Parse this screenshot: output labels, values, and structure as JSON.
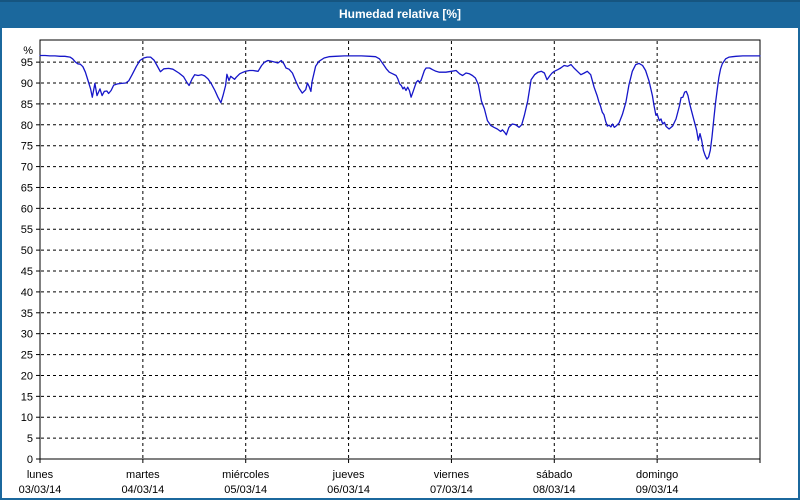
{
  "window": {
    "title": "Humedad relativa [%]"
  },
  "colors": {
    "titlebar_bg": "#1b689d",
    "window_border": "#1b689d",
    "title_text": "#ffffff",
    "line": "#1616c9",
    "grid": "#000000",
    "axis": "#000000",
    "label_text": "#000000",
    "plot_bg": "#ffffff"
  },
  "chart_data": {
    "type": "line",
    "title": "Humedad relativa [%]",
    "ylabel": "%",
    "ylim": [
      0,
      100.3
    ],
    "y_ticks": [
      0,
      5,
      10,
      15,
      20,
      25,
      30,
      35,
      40,
      45,
      50,
      55,
      60,
      65,
      70,
      75,
      80,
      85,
      90,
      95
    ],
    "grid": "dashed",
    "legend": "none",
    "x_total_hours": 168,
    "days": [
      {
        "name": "lunes",
        "date": "03/03/14"
      },
      {
        "name": "martes",
        "date": "04/03/14"
      },
      {
        "name": "miércoles",
        "date": "05/03/14"
      },
      {
        "name": "jueves",
        "date": "06/03/14"
      },
      {
        "name": "viernes",
        "date": "07/03/14"
      },
      {
        "name": "sábado",
        "date": "08/03/14"
      },
      {
        "name": "domingo",
        "date": "09/03/14"
      }
    ],
    "series": [
      {
        "name": "Humedad relativa",
        "unit": "%",
        "points": [
          [
            0,
            96.6
          ],
          [
            1.2,
            96.6
          ],
          [
            2.3,
            96.5
          ],
          [
            3.5,
            96.5
          ],
          [
            4.7,
            96.4
          ],
          [
            5.8,
            96.4
          ],
          [
            7,
            96.2
          ],
          [
            7.6,
            95.8
          ],
          [
            8.2,
            95.1
          ],
          [
            8.8,
            94.6
          ],
          [
            9.4,
            94.5
          ],
          [
            10,
            93.9
          ],
          [
            10.6,
            92.6
          ],
          [
            11.2,
            90.6
          ],
          [
            11.8,
            88.6
          ],
          [
            12.2,
            86.6
          ],
          [
            12.8,
            89.9
          ],
          [
            13.3,
            87.0
          ],
          [
            14,
            88.6
          ],
          [
            14.5,
            87.0
          ],
          [
            15,
            88.0
          ],
          [
            15.6,
            88.1
          ],
          [
            16,
            87.5
          ],
          [
            16.6,
            88.2
          ],
          [
            17.2,
            89.5
          ],
          [
            18.1,
            89.8
          ],
          [
            19,
            89.9
          ],
          [
            20,
            90.0
          ],
          [
            20.7,
            90.5
          ],
          [
            21.5,
            92.0
          ],
          [
            22.5,
            94.0
          ],
          [
            23.3,
            95.4
          ],
          [
            24.2,
            96.0
          ],
          [
            25,
            96.2
          ],
          [
            25.8,
            96.2
          ],
          [
            26.6,
            95.5
          ],
          [
            27.3,
            94.2
          ],
          [
            28.1,
            92.7
          ],
          [
            28.9,
            93.4
          ],
          [
            30,
            93.5
          ],
          [
            31,
            93.3
          ],
          [
            32.4,
            92.4
          ],
          [
            33.5,
            91.5
          ],
          [
            34.3,
            90.1
          ],
          [
            34.8,
            89.4
          ],
          [
            35.5,
            91.0
          ],
          [
            36.1,
            92.0
          ],
          [
            36.9,
            91.8
          ],
          [
            37.7,
            92.0
          ],
          [
            38.4,
            91.7
          ],
          [
            39.2,
            91.0
          ],
          [
            40,
            89.8
          ],
          [
            40.8,
            88.2
          ],
          [
            41.5,
            86.6
          ],
          [
            42.2,
            85.3
          ],
          [
            42.7,
            87.0
          ],
          [
            43.3,
            89.4
          ],
          [
            43.6,
            92.1
          ],
          [
            44.1,
            90.6
          ],
          [
            44.5,
            91.6
          ],
          [
            45,
            91.2
          ],
          [
            45.4,
            90.9
          ],
          [
            45.8,
            91.4
          ],
          [
            46.6,
            92.2
          ],
          [
            47.4,
            92.6
          ],
          [
            48,
            92.8
          ],
          [
            48.9,
            93.0
          ],
          [
            49.7,
            93.0
          ],
          [
            50.9,
            92.8
          ],
          [
            51.7,
            94.2
          ],
          [
            52.4,
            95.0
          ],
          [
            53.2,
            95.4
          ],
          [
            54,
            95.2
          ],
          [
            54.8,
            95.0
          ],
          [
            55.5,
            94.8
          ],
          [
            56.3,
            95.4
          ],
          [
            56.9,
            94.6
          ],
          [
            57.4,
            93.6
          ],
          [
            58.1,
            93.3
          ],
          [
            58.9,
            92.4
          ],
          [
            59.7,
            90.4
          ],
          [
            60.4,
            88.8
          ],
          [
            61.2,
            87.6
          ],
          [
            62,
            88.4
          ],
          [
            62.4,
            90.0
          ],
          [
            62.8,
            89.2
          ],
          [
            63.2,
            88.0
          ],
          [
            63.5,
            90.4
          ],
          [
            64.3,
            94.0
          ],
          [
            65.1,
            95.2
          ],
          [
            66.3,
            96.0
          ],
          [
            67.4,
            96.3
          ],
          [
            69,
            96.4
          ],
          [
            71,
            96.5
          ],
          [
            73,
            96.5
          ],
          [
            75,
            96.5
          ],
          [
            77,
            96.4
          ],
          [
            78.3,
            96.3
          ],
          [
            79.2,
            95.8
          ],
          [
            80,
            94.6
          ],
          [
            80.8,
            93.4
          ],
          [
            81.5,
            92.6
          ],
          [
            82.3,
            92.2
          ],
          [
            83.1,
            91.8
          ],
          [
            83.5,
            91.0
          ],
          [
            83.9,
            89.8
          ],
          [
            84.3,
            89.4
          ],
          [
            84.7,
            88.6
          ],
          [
            85,
            89.0
          ],
          [
            85.4,
            88.2
          ],
          [
            85.8,
            89.0
          ],
          [
            86.2,
            88.2
          ],
          [
            86.6,
            86.6
          ],
          [
            87,
            87.8
          ],
          [
            87.4,
            89.0
          ],
          [
            87.8,
            90.2
          ],
          [
            88.2,
            90.6
          ],
          [
            88.5,
            90.2
          ],
          [
            88.9,
            90.6
          ],
          [
            89.3,
            91.8
          ],
          [
            89.7,
            93.0
          ],
          [
            90.1,
            93.6
          ],
          [
            90.9,
            93.6
          ],
          [
            91.6,
            93.2
          ],
          [
            92.4,
            92.8
          ],
          [
            93.2,
            92.6
          ],
          [
            94.7,
            92.6
          ],
          [
            96,
            92.8
          ],
          [
            97.1,
            93.0
          ],
          [
            97.9,
            92.2
          ],
          [
            98.6,
            91.8
          ],
          [
            99.4,
            92.4
          ],
          [
            100.2,
            92.2
          ],
          [
            100.9,
            91.8
          ],
          [
            101.6,
            91.2
          ],
          [
            102.3,
            89.6
          ],
          [
            103,
            85.7
          ],
          [
            103.7,
            83.8
          ],
          [
            104.4,
            81.0
          ],
          [
            105.2,
            79.8
          ],
          [
            105.9,
            79.4
          ],
          [
            106.7,
            79.0
          ],
          [
            107.5,
            78.4
          ],
          [
            107.9,
            78.8
          ],
          [
            108.4,
            78.2
          ],
          [
            108.8,
            77.6
          ],
          [
            109.4,
            79.4
          ],
          [
            110.2,
            80.2
          ],
          [
            111,
            80.0
          ],
          [
            111.8,
            79.4
          ],
          [
            112.4,
            80.0
          ],
          [
            113,
            82.2
          ],
          [
            113.8,
            85.7
          ],
          [
            114.6,
            90.8
          ],
          [
            115.4,
            92.0
          ],
          [
            116.2,
            92.6
          ],
          [
            117,
            92.8
          ],
          [
            117.7,
            92.4
          ],
          [
            118.3,
            90.8
          ],
          [
            119,
            91.8
          ],
          [
            119.5,
            92.4
          ],
          [
            120,
            92.8
          ],
          [
            120.8,
            93.2
          ],
          [
            121.5,
            93.6
          ],
          [
            122.3,
            94.2
          ],
          [
            123.1,
            94.0
          ],
          [
            123.9,
            94.4
          ],
          [
            124.6,
            93.6
          ],
          [
            125.4,
            92.8
          ],
          [
            126.2,
            92.0
          ],
          [
            127,
            92.4
          ],
          [
            127.7,
            92.8
          ],
          [
            128.5,
            92.0
          ],
          [
            128.9,
            90.5
          ],
          [
            129.3,
            89.0
          ],
          [
            130,
            87.0
          ],
          [
            130.4,
            85.5
          ],
          [
            130.8,
            84.4
          ],
          [
            131.2,
            83.0
          ],
          [
            131.6,
            82.4
          ],
          [
            132,
            80.8
          ],
          [
            132.4,
            79.7
          ],
          [
            132.8,
            79.9
          ],
          [
            133.2,
            79.5
          ],
          [
            133.6,
            80.2
          ],
          [
            134,
            79.4
          ],
          [
            134.4,
            79.7
          ],
          [
            135.1,
            80.4
          ],
          [
            135.9,
            82.5
          ],
          [
            136.7,
            85.4
          ],
          [
            137.4,
            89.5
          ],
          [
            138.2,
            92.8
          ],
          [
            139,
            94.4
          ],
          [
            139.8,
            94.7
          ],
          [
            140.6,
            94.2
          ],
          [
            141.3,
            93.0
          ],
          [
            142.1,
            90.5
          ],
          [
            142.9,
            87.0
          ],
          [
            143.3,
            84.5
          ],
          [
            143.7,
            82.3
          ],
          [
            144,
            82.6
          ],
          [
            144.5,
            81.0
          ],
          [
            144.9,
            81.4
          ],
          [
            145.3,
            80.2
          ],
          [
            145.7,
            80.6
          ],
          [
            146.1,
            79.6
          ],
          [
            146.8,
            79.0
          ],
          [
            147.6,
            79.7
          ],
          [
            148.4,
            81.4
          ],
          [
            149.2,
            84.5
          ],
          [
            149.6,
            86.5
          ],
          [
            150,
            86.6
          ],
          [
            150.4,
            87.8
          ],
          [
            150.8,
            88.0
          ],
          [
            151.2,
            87.0
          ],
          [
            151.6,
            85.0
          ],
          [
            152.4,
            81.9
          ],
          [
            153.2,
            78.7
          ],
          [
            153.6,
            76.3
          ],
          [
            154,
            77.9
          ],
          [
            154.4,
            76.3
          ],
          [
            154.8,
            73.9
          ],
          [
            155.2,
            72.7
          ],
          [
            155.6,
            71.8
          ],
          [
            156,
            72.3
          ],
          [
            156.4,
            73.9
          ],
          [
            156.8,
            77.1
          ],
          [
            157.2,
            81.1
          ],
          [
            157.6,
            85.0
          ],
          [
            158,
            88.2
          ],
          [
            158.4,
            91.4
          ],
          [
            158.8,
            93.4
          ],
          [
            159.2,
            94.6
          ],
          [
            160,
            95.8
          ],
          [
            160.8,
            96.2
          ],
          [
            161.6,
            96.3
          ],
          [
            162.4,
            96.4
          ],
          [
            164,
            96.5
          ],
          [
            166,
            96.5
          ],
          [
            168,
            96.5
          ]
        ]
      }
    ]
  }
}
